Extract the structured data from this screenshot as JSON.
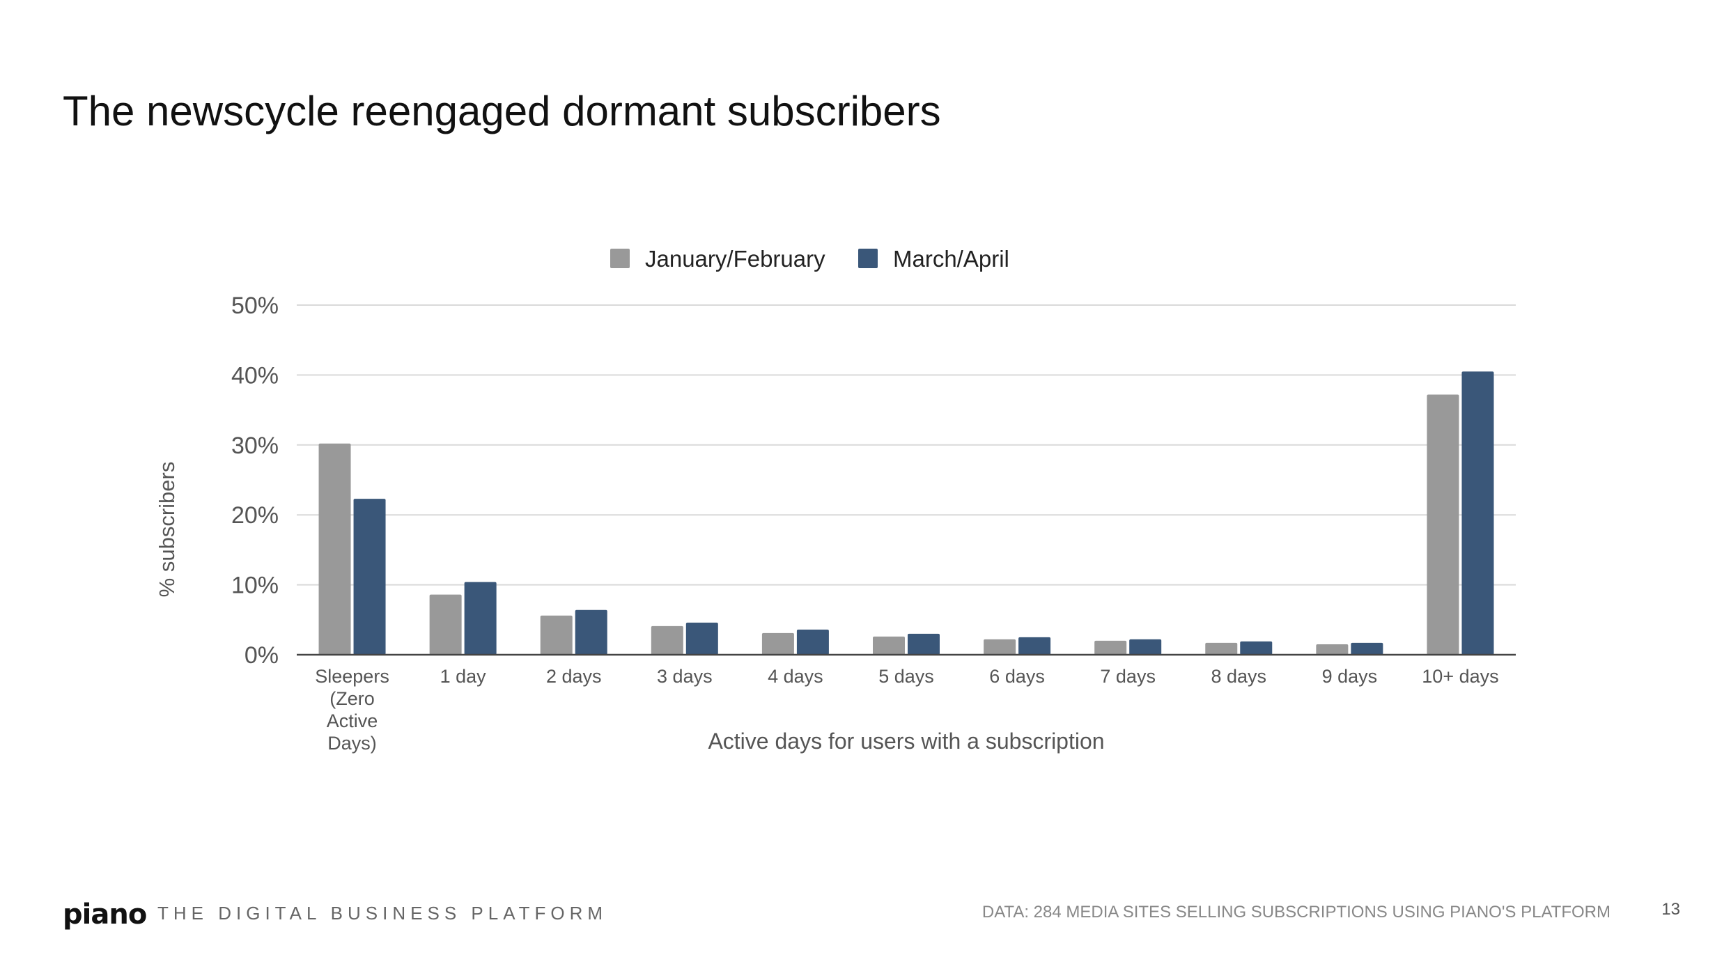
{
  "slide": {
    "title": "The newscycle reengaged dormant subscribers",
    "footer_logo": "piano",
    "footer_tagline": "THE DIGITAL BUSINESS PLATFORM",
    "footer_source": "DATA: 284 MEDIA SITES SELLING SUBSCRIPTIONS USING PIANO'S PLATFORM",
    "page_number": "13"
  },
  "chart_data": {
    "type": "bar",
    "title": "",
    "xlabel": "Active days for users with a subscription",
    "ylabel": "% subscribers",
    "ylim": [
      0,
      50
    ],
    "yticks": [
      0,
      10,
      20,
      30,
      40,
      50
    ],
    "ytick_labels": [
      "0%",
      "10%",
      "20%",
      "30%",
      "40%",
      "50%"
    ],
    "grid": true,
    "legend_position": "top-center",
    "categories": [
      [
        "Sleepers",
        "(Zero",
        "Active",
        "Days)"
      ],
      [
        "1 day"
      ],
      [
        "2 days"
      ],
      [
        "3 days"
      ],
      [
        "4 days"
      ],
      [
        "5 days"
      ],
      [
        "6 days"
      ],
      [
        "7 days"
      ],
      [
        "8 days"
      ],
      [
        "9 days"
      ],
      [
        "10+ days"
      ]
    ],
    "series": [
      {
        "name": "January/February",
        "color": "#999999",
        "values": [
          30.2,
          8.6,
          5.6,
          4.1,
          3.1,
          2.6,
          2.2,
          2.0,
          1.7,
          1.5,
          37.2
        ]
      },
      {
        "name": "March/April",
        "color": "#3a5779",
        "values": [
          22.3,
          10.4,
          6.4,
          4.6,
          3.6,
          3.0,
          2.5,
          2.2,
          1.9,
          1.7,
          40.5
        ]
      }
    ]
  }
}
